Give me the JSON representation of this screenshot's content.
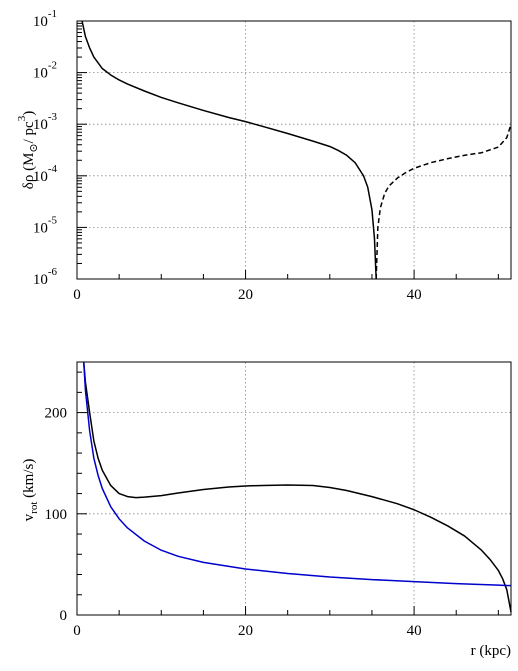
{
  "chart_data": [
    {
      "type": "line",
      "title": "",
      "xlabel": "",
      "ylabel": {
        "base": "δρ (M",
        "sub": "⊙",
        "mid": "/ pc",
        "sup": "3",
        "end": ")"
      },
      "xlim": [
        0,
        51.5
      ],
      "ylim": [
        1e-06,
        0.1
      ],
      "yscale": "log",
      "grid": true,
      "x_ticks": [
        0,
        20,
        40
      ],
      "y_ticks": [
        {
          "value": 1e-06,
          "base": "10",
          "exp": "-6"
        },
        {
          "value": 1e-05,
          "base": "10",
          "exp": "-5"
        },
        {
          "value": 0.0001,
          "base": "10",
          "exp": "-4"
        },
        {
          "value": 0.001,
          "base": "10",
          "exp": "-3"
        },
        {
          "value": 0.01,
          "base": "10",
          "exp": "-2"
        },
        {
          "value": 0.1,
          "base": "10",
          "exp": "-1"
        }
      ],
      "series": [
        {
          "style": "solid",
          "color": "#000000",
          "x": [
            0.6,
            1,
            1.5,
            2,
            3,
            4,
            5,
            6,
            8,
            10,
            12,
            15,
            18,
            20,
            22,
            25,
            28,
            30,
            31,
            32,
            33,
            34,
            34.5,
            35,
            35.3,
            35.5
          ],
          "y": [
            0.1,
            0.05,
            0.03,
            0.02,
            0.012,
            0.009,
            0.0072,
            0.006,
            0.0044,
            0.0033,
            0.0026,
            0.00185,
            0.00135,
            0.00112,
            0.00091,
            0.00066,
            0.00047,
            0.00037,
            0.00031,
            0.00025,
            0.00018,
            0.0001,
            6e-05,
            2.2e-05,
            6e-06,
            1e-06
          ]
        },
        {
          "style": "dashed",
          "color": "#000000",
          "x": [
            35.5,
            35.7,
            36,
            36.5,
            37,
            38,
            39,
            40,
            42,
            44,
            46,
            48,
            50,
            51,
            51.5
          ],
          "y": [
            1e-06,
            1e-05,
            2.4e-05,
            4.5e-05,
            6.3e-05,
            9e-05,
            0.000115,
            0.00014,
            0.00018,
            0.000215,
            0.00025,
            0.00028,
            0.00036,
            0.00055,
            0.001
          ]
        }
      ]
    },
    {
      "type": "line",
      "title": "",
      "xlabel": "r (kpc)",
      "ylabel": {
        "base": "v",
        "sub": "rot",
        "end": " (km/s)"
      },
      "xlim": [
        0,
        51.5
      ],
      "ylim": [
        0,
        250
      ],
      "grid": true,
      "x_ticks": [
        0,
        20,
        40
      ],
      "y_ticks": [
        {
          "value": 0,
          "label": "0"
        },
        {
          "value": 100,
          "label": "100"
        },
        {
          "value": 200,
          "label": "200"
        }
      ],
      "series": [
        {
          "style": "solid",
          "color": "#000000",
          "x": [
            0.8,
            1,
            1.5,
            2,
            2.5,
            3,
            4,
            5,
            6,
            7,
            8,
            10,
            12,
            15,
            18,
            20,
            22,
            25,
            28,
            30,
            32,
            35,
            38,
            40,
            42,
            44,
            46,
            48,
            49,
            50,
            50.5,
            51,
            51.5
          ],
          "y": [
            250,
            230,
            200,
            172,
            155,
            143,
            128,
            120,
            117,
            116,
            116.5,
            118,
            120.5,
            124,
            126.5,
            127.5,
            128,
            128.5,
            128,
            126,
            123,
            117,
            110,
            104,
            96.5,
            88,
            78,
            64,
            55,
            44,
            36,
            25,
            3
          ]
        },
        {
          "style": "solid",
          "color": "#0000cc",
          "x": [
            0.8,
            1,
            1.5,
            2,
            2.5,
            3,
            4,
            5,
            6,
            8,
            10,
            12,
            15,
            20,
            25,
            30,
            35,
            40,
            45,
            50,
            51.5
          ],
          "y": [
            250,
            222,
            182,
            155,
            138,
            125,
            107,
            95,
            86,
            73,
            64,
            58,
            52,
            45.5,
            41,
            37.5,
            35,
            33,
            31,
            29.5,
            29
          ]
        }
      ]
    }
  ]
}
